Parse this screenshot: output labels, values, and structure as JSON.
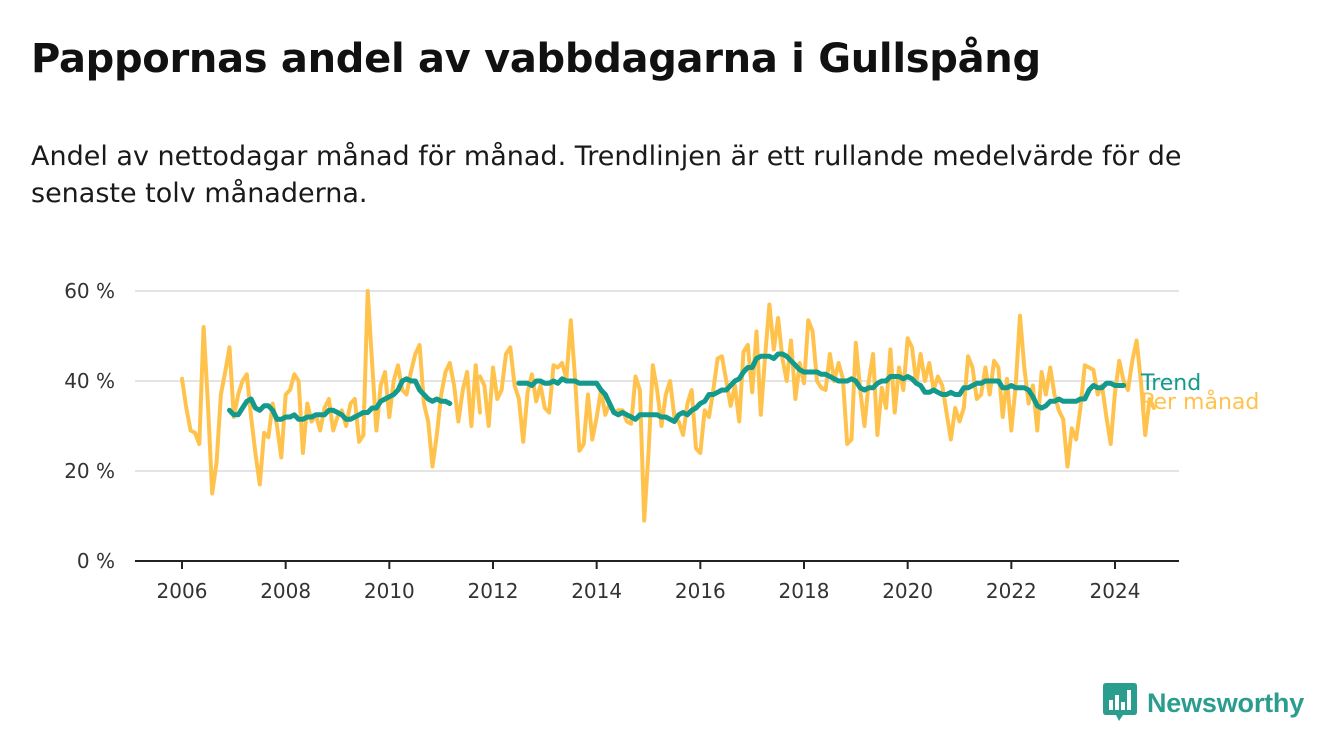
{
  "title": "Pappornas andel av vabbdagarna i Gullspång",
  "subtitle": "Andel av nettodagar månad för månad. Trendlinjen är ett rullande medelvärde för de senaste tolv månaderna.",
  "brand": {
    "name": "Newsworthy",
    "color": "#2a9d8f",
    "icon": "bar-chart-speech-bubble-icon"
  },
  "chart_data": {
    "type": "line",
    "ylim": [
      0,
      60
    ],
    "xlim": [
      2006,
      2024.5
    ],
    "y_ticks": [
      "0 %",
      "20 %",
      "40 %",
      "60 %"
    ],
    "y_tick_values": [
      0,
      20,
      40,
      60
    ],
    "x_ticks": [
      "2006",
      "2008",
      "2010",
      "2012",
      "2014",
      "2016",
      "2018",
      "2020",
      "2022",
      "2024"
    ],
    "x_tick_values": [
      2006,
      2008,
      2010,
      2012,
      2014,
      2016,
      2018,
      2020,
      2022,
      2024
    ],
    "grid": true,
    "series": [
      {
        "name": "Per månad",
        "color": "#ffc34d",
        "segments": [
          {
            "start": 2006.0,
            "values": [
              40.5,
              34,
              29,
              28.5,
              26,
              52,
              35,
              15,
              22,
              37,
              42,
              47.5,
              32,
              37,
              40,
              41.5,
              32,
              24,
              17,
              28.5,
              27.5,
              35,
              30,
              23,
              37,
              38,
              41.5,
              40,
              24,
              35,
              31,
              32.5,
              29,
              34,
              36,
              29,
              32,
              33.5,
              30,
              35,
              36,
              26.5,
              28,
              60,
              44,
              29,
              39,
              42,
              32,
              40,
              43.5,
              38,
              37,
              42,
              46,
              48,
              35,
              31,
              21,
              28,
              37,
              42,
              44,
              39,
              31,
              38,
              42,
              30,
              43.5,
              33
            ]
          },
          {
            "start": 2011.75,
            "values": [
              41,
              39,
              30,
              43,
              36,
              38,
              46,
              47.5,
              39,
              36,
              26.5,
              37.5,
              41.5,
              35.5,
              39,
              34,
              33,
              43.5,
              43,
              44,
              40.5,
              53.5,
              40.5,
              24.5,
              26,
              37,
              27,
              32,
              38,
              32.5,
              35,
              33,
              33.5,
              33.5,
              31,
              30.5,
              41,
              38,
              9,
              24,
              43.5,
              38,
              30,
              37,
              40,
              32,
              31,
              28,
              35,
              38,
              25,
              24,
              33.5,
              32,
              38,
              45,
              45.5,
              40,
              34.5,
              39,
              31,
              46.5,
              48,
              37.5,
              51,
              32.5,
              45.5,
              57,
              47,
              54,
              45,
              40,
              49,
              36,
              44,
              39.5,
              53.5,
              51,
              40,
              38.5,
              38,
              46,
              40,
              44,
              40.5,
              26,
              27,
              48.5,
              38,
              30,
              40,
              46,
              28,
              38.5,
              34,
              47,
              33,
              43,
              38,
              49.5,
              47.5,
              39.5,
              46,
              40,
              44,
              38,
              41,
              39,
              33,
              27,
              34,
              31,
              34,
              45.5,
              43,
              36,
              37,
              43,
              37,
              44.5,
              43,
              32,
              40.5,
              29,
              39,
              54.5,
              43,
              35,
              39,
              29,
              42,
              37,
              43,
              37,
              33.5,
              31.5,
              21,
              29.5,
              27,
              34,
              43.5,
              43,
              42.5,
              37,
              39,
              32,
              26,
              37.5,
              44.5,
              40,
              38,
              44.5,
              49,
              40,
              28,
              36,
              34
            ]
          }
        ]
      },
      {
        "name": "Trend",
        "color": "#139a8c",
        "segments": [
          {
            "start": 2006.9167,
            "values": [
              33.5,
              32.5,
              32.5,
              34,
              35.5,
              36,
              34,
              33.5,
              34.5,
              34.5,
              33.5,
              31.5,
              31.5,
              32,
              32,
              32.5,
              31.5,
              31.5,
              32,
              32,
              32.5,
              32.5,
              32.5,
              33.5,
              33.5,
              33,
              32.5,
              31.5,
              31.5,
              32,
              32.5,
              33,
              33,
              34,
              34,
              35.5,
              36,
              36.5,
              37,
              38,
              40,
              40.5,
              40,
              40,
              38,
              37,
              36,
              35.5,
              36,
              35.5,
              35.5,
              35
            ]
          },
          {
            "start": 2012.5,
            "values": [
              39.5,
              39.5,
              39.5,
              39,
              40,
              40,
              39.5,
              39.5,
              40,
              39.5,
              40.5,
              40,
              40,
              40,
              39.5,
              39.5,
              39.5,
              39.5,
              39.5,
              38,
              37,
              35,
              33,
              32.5,
              33,
              32.5,
              32,
              31.5,
              32.5,
              32.5,
              32.5,
              32.5,
              32.5,
              32,
              32,
              31.5,
              31,
              32.5,
              33,
              32.5,
              33.5,
              34,
              35,
              35.5,
              37,
              37,
              37.5,
              38,
              38,
              39,
              40,
              40.5,
              42,
              43,
              43,
              45,
              45.5,
              45.5,
              45.5,
              45,
              46,
              46,
              45.5,
              44.5,
              43.5,
              42.5,
              42,
              42,
              42,
              42,
              41.5,
              41.5,
              41,
              40.5,
              40,
              40,
              40,
              40.5,
              40,
              38.5,
              38,
              38.5,
              38.5,
              39.5,
              40,
              40,
              41,
              41,
              41,
              40.5,
              41,
              40.5,
              39.5,
              39,
              37.5,
              37.5,
              38,
              37.5,
              37,
              37,
              37.5,
              37,
              37,
              38.5,
              38.5,
              39,
              39.5,
              39.5,
              40,
              40,
              40,
              40,
              38.5,
              38.5,
              39,
              38.5,
              38.5,
              38.5,
              38,
              36.5,
              34.5,
              34,
              34.5,
              35.5,
              35.5,
              36,
              35.5,
              35.5,
              35.5,
              35.5,
              36,
              36,
              38,
              39,
              38.5,
              38.5,
              39.5,
              39.5,
              39,
              39,
              39
            ]
          }
        ]
      }
    ]
  }
}
